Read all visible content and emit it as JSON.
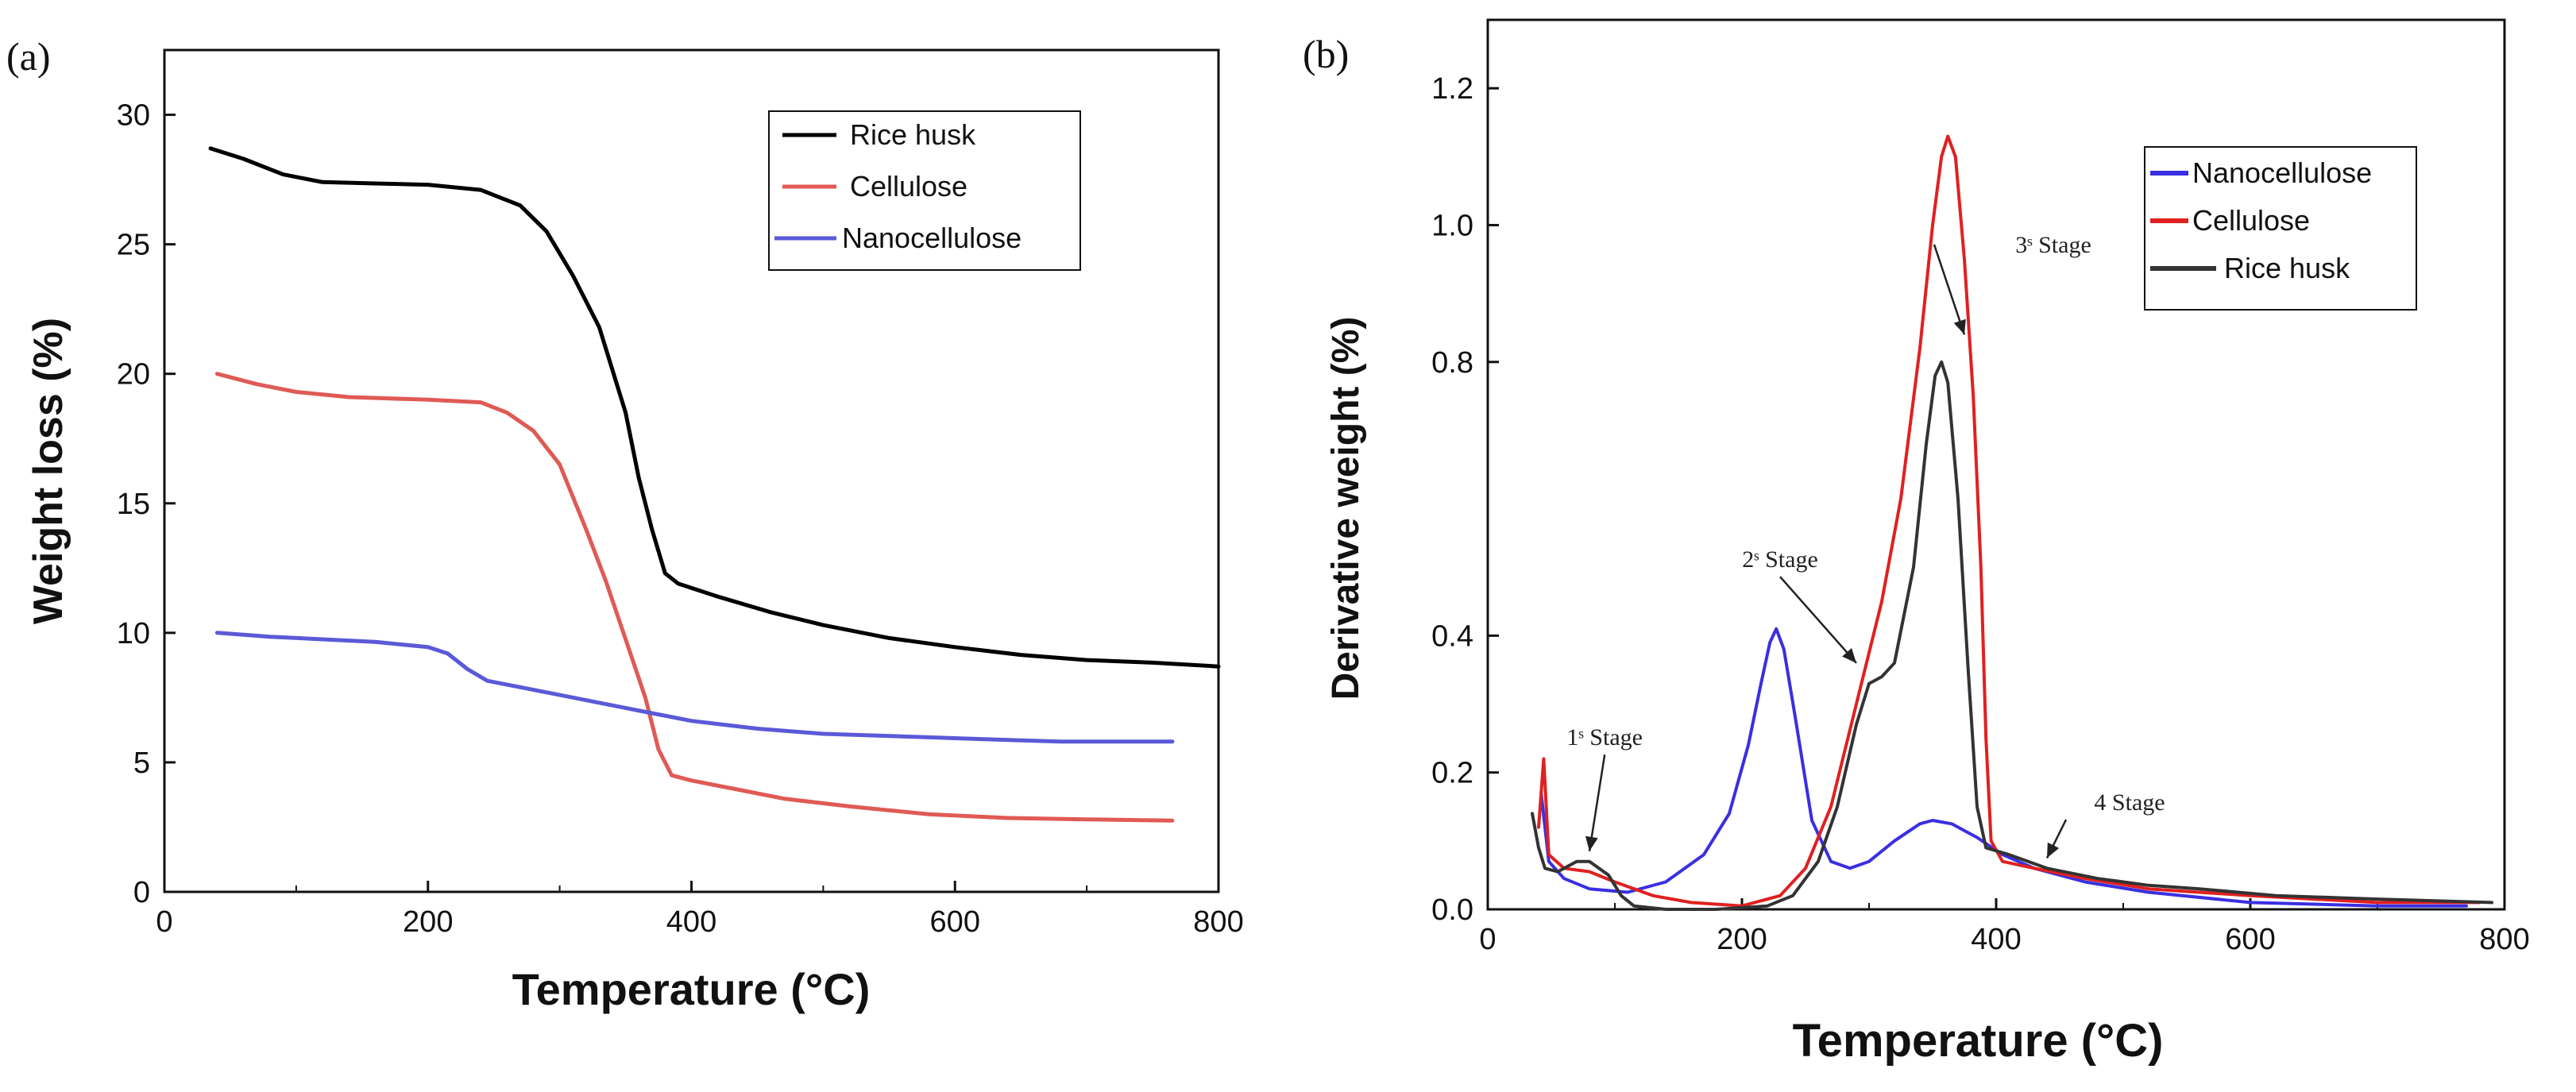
{
  "chart_data": [
    {
      "type": "line",
      "panel_label": "(a)",
      "xlabel": "Temperature (°C)",
      "ylabel": "Weight loss (%)",
      "xlim": [
        0,
        800
      ],
      "ylim": [
        0,
        32.5
      ],
      "x_ticks": [
        0,
        200,
        400,
        600,
        800
      ],
      "y_ticks": [
        0,
        5,
        10,
        15,
        20,
        25,
        30
      ],
      "grid": false,
      "legend_position": "top-right",
      "series": [
        {
          "name": "Rice husk",
          "color": "#000000",
          "points": [
            [
              35,
              28.7
            ],
            [
              60,
              28.3
            ],
            [
              90,
              27.7
            ],
            [
              120,
              27.4
            ],
            [
              160,
              27.35
            ],
            [
              200,
              27.3
            ],
            [
              240,
              27.1
            ],
            [
              270,
              26.5
            ],
            [
              290,
              25.5
            ],
            [
              310,
              23.8
            ],
            [
              330,
              21.8
            ],
            [
              350,
              18.5
            ],
            [
              360,
              16
            ],
            [
              370,
              14
            ],
            [
              380,
              12.3
            ],
            [
              390,
              11.9
            ],
            [
              420,
              11.4
            ],
            [
              460,
              10.8
            ],
            [
              500,
              10.3
            ],
            [
              550,
              9.8
            ],
            [
              600,
              9.45
            ],
            [
              650,
              9.15
            ],
            [
              700,
              8.95
            ],
            [
              750,
              8.85
            ],
            [
              800,
              8.7
            ]
          ]
        },
        {
          "name": "Cellulose",
          "color": "#e05a55",
          "points": [
            [
              40,
              20.0
            ],
            [
              70,
              19.6
            ],
            [
              100,
              19.3
            ],
            [
              140,
              19.1
            ],
            [
              200,
              19.0
            ],
            [
              240,
              18.9
            ],
            [
              260,
              18.5
            ],
            [
              280,
              17.8
            ],
            [
              300,
              16.5
            ],
            [
              320,
              14.0
            ],
            [
              335,
              12.0
            ],
            [
              345,
              10.5
            ],
            [
              355,
              9.0
            ],
            [
              365,
              7.5
            ],
            [
              375,
              5.5
            ],
            [
              385,
              4.5
            ],
            [
              400,
              4.3
            ],
            [
              430,
              4.0
            ],
            [
              470,
              3.6
            ],
            [
              520,
              3.3
            ],
            [
              580,
              3.0
            ],
            [
              640,
              2.85
            ],
            [
              700,
              2.8
            ],
            [
              765,
              2.75
            ]
          ]
        },
        {
          "name": "Nanocellulose",
          "color": "#5a5ad8",
          "points": [
            [
              40,
              10.0
            ],
            [
              80,
              9.85
            ],
            [
              120,
              9.75
            ],
            [
              160,
              9.65
            ],
            [
              200,
              9.45
            ],
            [
              215,
              9.2
            ],
            [
              230,
              8.6
            ],
            [
              245,
              8.15
            ],
            [
              270,
              7.9
            ],
            [
              300,
              7.6
            ],
            [
              340,
              7.2
            ],
            [
              370,
              6.9
            ],
            [
              400,
              6.6
            ],
            [
              450,
              6.3
            ],
            [
              500,
              6.1
            ],
            [
              560,
              6.0
            ],
            [
              620,
              5.9
            ],
            [
              680,
              5.8
            ],
            [
              765,
              5.8
            ]
          ]
        }
      ]
    },
    {
      "type": "line",
      "panel_label": "(b)",
      "xlabel": "Temperature (°C)",
      "ylabel": "Derivative weight (%)",
      "xlim": [
        0,
        800
      ],
      "ylim": [
        0,
        1.3
      ],
      "x_ticks": [
        0,
        200,
        400,
        600,
        800
      ],
      "y_ticks": [
        0.0,
        0.2,
        0.4,
        0.8,
        1.0,
        1.2
      ],
      "y_tick_labels": [
        "0.0",
        "0.2",
        "0.4",
        "0.8",
        "1.0",
        "1.2"
      ],
      "grid": false,
      "legend_position": "top-right",
      "series": [
        {
          "name": "Nanocellulose",
          "color": "#3a2fe0",
          "points": [
            [
              42,
              0.17
            ],
            [
              48,
              0.07
            ],
            [
              60,
              0.045
            ],
            [
              80,
              0.03
            ],
            [
              110,
              0.025
            ],
            [
              140,
              0.04
            ],
            [
              170,
              0.08
            ],
            [
              190,
              0.14
            ],
            [
              205,
              0.24
            ],
            [
              215,
              0.33
            ],
            [
              222,
              0.39
            ],
            [
              227,
              0.41
            ],
            [
              233,
              0.38
            ],
            [
              242,
              0.28
            ],
            [
              255,
              0.13
            ],
            [
              270,
              0.07
            ],
            [
              285,
              0.06
            ],
            [
              300,
              0.07
            ],
            [
              320,
              0.1
            ],
            [
              340,
              0.125
            ],
            [
              350,
              0.13
            ],
            [
              365,
              0.125
            ],
            [
              385,
              0.105
            ],
            [
              405,
              0.08
            ],
            [
              430,
              0.06
            ],
            [
              470,
              0.04
            ],
            [
              520,
              0.025
            ],
            [
              600,
              0.01
            ],
            [
              700,
              0.005
            ],
            [
              770,
              0.005
            ]
          ]
        },
        {
          "name": "Cellulose",
          "color": "#e02020",
          "points": [
            [
              40,
              0.12
            ],
            [
              44,
              0.22
            ],
            [
              48,
              0.08
            ],
            [
              60,
              0.06
            ],
            [
              80,
              0.055
            ],
            [
              100,
              0.04
            ],
            [
              130,
              0.02
            ],
            [
              160,
              0.01
            ],
            [
              200,
              0.005
            ],
            [
              230,
              0.02
            ],
            [
              250,
              0.06
            ],
            [
              270,
              0.15
            ],
            [
              290,
              0.3
            ],
            [
              310,
              0.45
            ],
            [
              325,
              0.6
            ],
            [
              340,
              0.82
            ],
            [
              350,
              1.0
            ],
            [
              357,
              1.1
            ],
            [
              362,
              1.13
            ],
            [
              368,
              1.1
            ],
            [
              375,
              0.95
            ],
            [
              382,
              0.75
            ],
            [
              388,
              0.5
            ],
            [
              392,
              0.25
            ],
            [
              396,
              0.1
            ],
            [
              405,
              0.07
            ],
            [
              430,
              0.06
            ],
            [
              470,
              0.045
            ],
            [
              520,
              0.03
            ],
            [
              600,
              0.02
            ],
            [
              700,
              0.01
            ],
            [
              780,
              0.01
            ]
          ]
        },
        {
          "name": "Rice husk",
          "color": "#333333",
          "points": [
            [
              35,
              0.14
            ],
            [
              40,
              0.09
            ],
            [
              45,
              0.06
            ],
            [
              55,
              0.055
            ],
            [
              70,
              0.07
            ],
            [
              80,
              0.07
            ],
            [
              95,
              0.05
            ],
            [
              105,
              0.02
            ],
            [
              115,
              0.005
            ],
            [
              140,
              0.0
            ],
            [
              180,
              0.0
            ],
            [
              220,
              0.005
            ],
            [
              240,
              0.02
            ],
            [
              260,
              0.07
            ],
            [
              275,
              0.15
            ],
            [
              290,
              0.27
            ],
            [
              300,
              0.33
            ],
            [
              310,
              0.34
            ],
            [
              320,
              0.36
            ],
            [
              335,
              0.5
            ],
            [
              345,
              0.68
            ],
            [
              352,
              0.78
            ],
            [
              357,
              0.8
            ],
            [
              362,
              0.77
            ],
            [
              370,
              0.6
            ],
            [
              378,
              0.35
            ],
            [
              385,
              0.15
            ],
            [
              392,
              0.09
            ],
            [
              410,
              0.08
            ],
            [
              440,
              0.06
            ],
            [
              480,
              0.045
            ],
            [
              520,
              0.035
            ],
            [
              560,
              0.03
            ],
            [
              620,
              0.02
            ],
            [
              700,
              0.015
            ],
            [
              790,
              0.01
            ]
          ]
        }
      ],
      "annotations": [
        {
          "text": "1ˢ Stage",
          "x": 92,
          "y": 0.24
        },
        {
          "text": "2ˢ Stage",
          "x": 230,
          "y": 0.5
        },
        {
          "text": "3ˢ Stage",
          "x": 445,
          "y": 0.96
        },
        {
          "text": "4 Stage",
          "x": 505,
          "y": 0.145
        }
      ]
    }
  ]
}
